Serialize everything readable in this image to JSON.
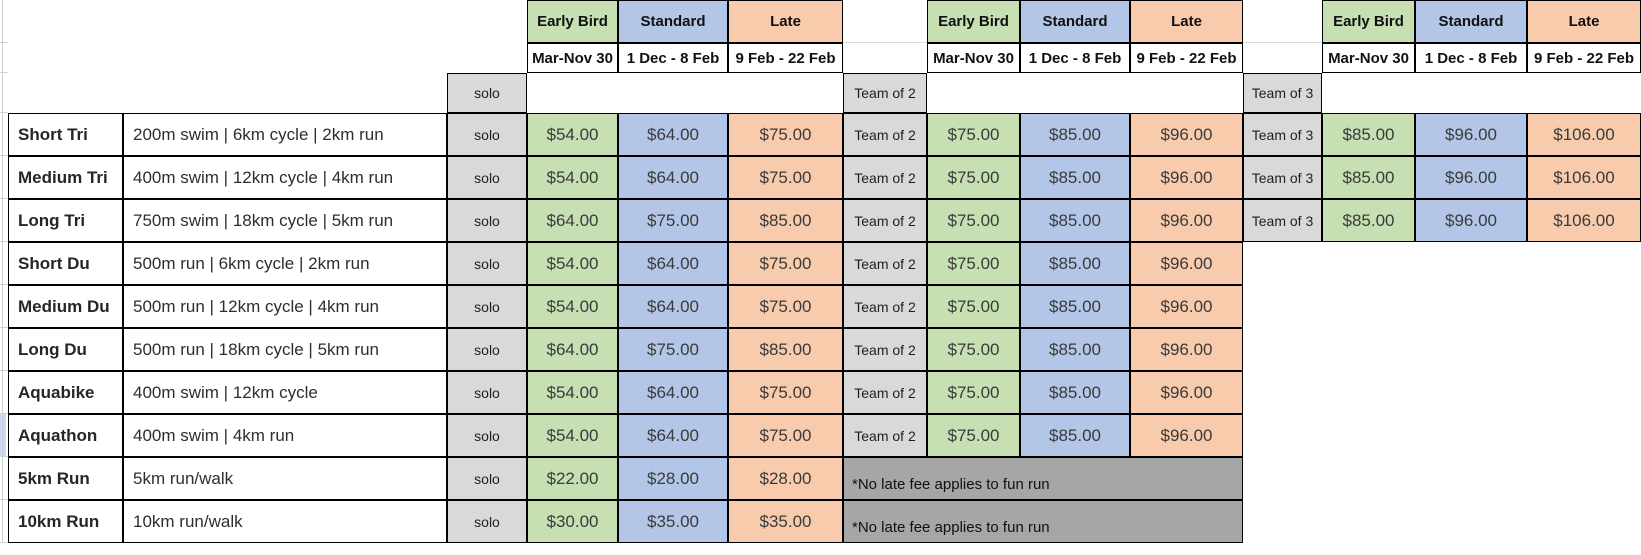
{
  "colors": {
    "early_bird_fill": "#c6e0b4",
    "standard_fill": "#b4c6e7",
    "late_fill": "#f8cbad",
    "group_label_fill": "#d9d9d9",
    "footnote_fill": "#a6a6a6",
    "row_highlight": "#c8daf8",
    "border": "#000000"
  },
  "tiers": [
    {
      "key": "early-bird",
      "label": "Early Bird",
      "date_range": "Mar-Nov 30"
    },
    {
      "key": "standard",
      "label": "Standard",
      "date_range": "1 Dec - 8 Feb"
    },
    {
      "key": "late",
      "label": "Late",
      "date_range": "9 Feb - 22 Feb"
    }
  ],
  "blocks": [
    {
      "key": "solo",
      "label": "solo"
    },
    {
      "key": "team-of-2",
      "label": "Team of 2"
    },
    {
      "key": "team-of-3",
      "label": "Team of 3"
    }
  ],
  "footnote": "*No late fee applies to fun run",
  "rows": [
    {
      "name": "Short Tri",
      "description": "200m swim | 6km cycle | 2km run",
      "solo": [
        "$54.00",
        "$64.00",
        "$75.00"
      ],
      "team_of_2": [
        "$75.00",
        "$85.00",
        "$96.00"
      ],
      "team_of_3": [
        "$85.00",
        "$96.00",
        "$106.00"
      ]
    },
    {
      "name": "Medium Tri",
      "description": "400m swim | 12km cycle | 4km run",
      "solo": [
        "$54.00",
        "$64.00",
        "$75.00"
      ],
      "team_of_2": [
        "$75.00",
        "$85.00",
        "$96.00"
      ],
      "team_of_3": [
        "$85.00",
        "$96.00",
        "$106.00"
      ]
    },
    {
      "name": "Long Tri",
      "description": "750m swim | 18km cycle | 5km run",
      "solo": [
        "$64.00",
        "$75.00",
        "$85.00"
      ],
      "team_of_2": [
        "$75.00",
        "$85.00",
        "$96.00"
      ],
      "team_of_3": [
        "$85.00",
        "$96.00",
        "$106.00"
      ]
    },
    {
      "name": "Short Du",
      "description": "500m run | 6km cycle | 2km run",
      "solo": [
        "$54.00",
        "$64.00",
        "$75.00"
      ],
      "team_of_2": [
        "$75.00",
        "$85.00",
        "$96.00"
      ],
      "team_of_3": null
    },
    {
      "name": "Medium Du",
      "description": "500m run | 12km cycle | 4km run",
      "solo": [
        "$54.00",
        "$64.00",
        "$75.00"
      ],
      "team_of_2": [
        "$75.00",
        "$85.00",
        "$96.00"
      ],
      "team_of_3": null
    },
    {
      "name": "Long Du",
      "description": "500m run | 18km cycle | 5km run",
      "solo": [
        "$64.00",
        "$75.00",
        "$85.00"
      ],
      "team_of_2": [
        "$75.00",
        "$85.00",
        "$96.00"
      ],
      "team_of_3": null
    },
    {
      "name": "Aquabike",
      "description": "400m swim | 12km cycle",
      "solo": [
        "$54.00",
        "$64.00",
        "$75.00"
      ],
      "team_of_2": [
        "$75.00",
        "$85.00",
        "$96.00"
      ],
      "team_of_3": null
    },
    {
      "name": "Aquathon",
      "description": "400m swim | 4km run",
      "solo": [
        "$54.00",
        "$64.00",
        "$75.00"
      ],
      "team_of_2": [
        "$75.00",
        "$85.00",
        "$96.00"
      ],
      "team_of_3": null,
      "highlighted": true
    },
    {
      "name": "5km Run",
      "description": "5km run/walk",
      "solo": [
        "$22.00",
        "$28.00",
        "$28.00"
      ],
      "team_of_2": null,
      "team_of_3": null,
      "footnote": true
    },
    {
      "name": "10km Run",
      "description": "10km run/walk",
      "solo": [
        "$30.00",
        "$35.00",
        "$35.00"
      ],
      "team_of_2": null,
      "team_of_3": null,
      "footnote": true
    }
  ]
}
